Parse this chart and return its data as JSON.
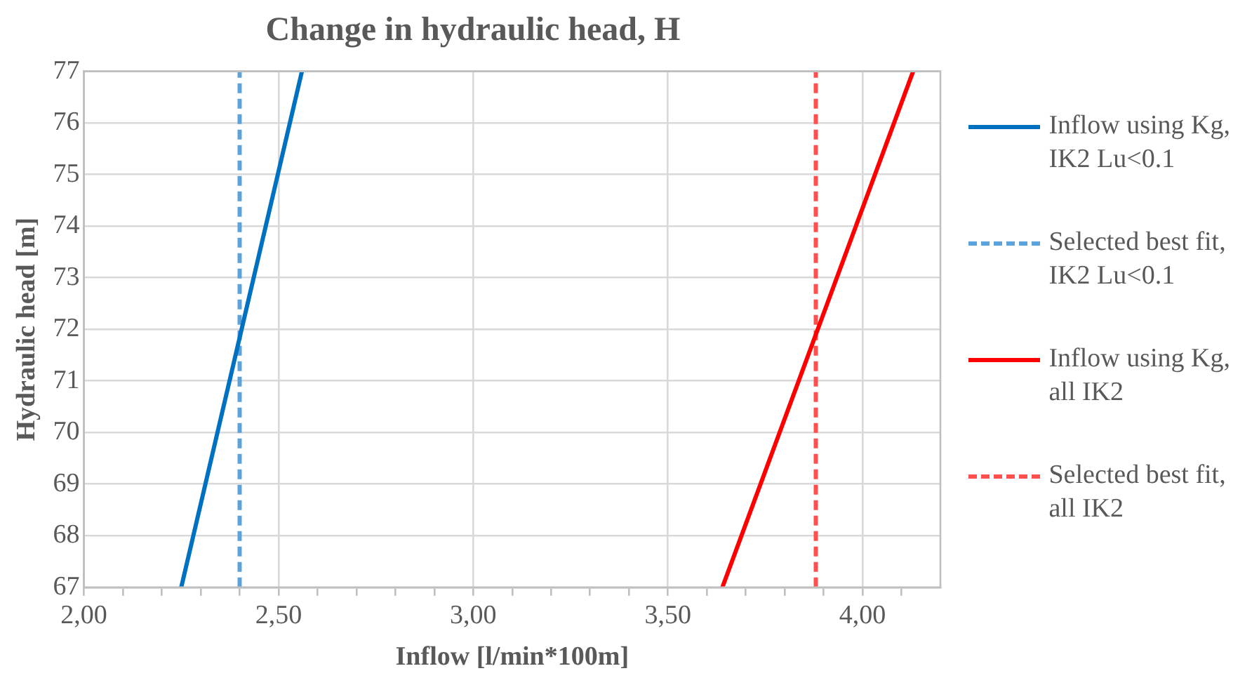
{
  "chart_data": {
    "type": "line",
    "title": "Change in hydraulic head, H",
    "xlabel": "Inflow [l/min*100m]",
    "ylabel": "Hydraulic head [m]",
    "xlim": [
      2,
      4.2
    ],
    "xticks": [
      {
        "value": 2,
        "label": "2,00"
      },
      {
        "value": 2.1,
        "label": null
      },
      {
        "value": 2.2,
        "label": null
      },
      {
        "value": 2.3,
        "label": null
      },
      {
        "value": 2.4,
        "label": null
      },
      {
        "value": 2.5,
        "label": "2,50"
      },
      {
        "value": 2.6,
        "label": null
      },
      {
        "value": 2.7,
        "label": null
      },
      {
        "value": 2.8,
        "label": null
      },
      {
        "value": 2.9,
        "label": null
      },
      {
        "value": 3,
        "label": "3,00"
      },
      {
        "value": 3.1,
        "label": null
      },
      {
        "value": 3.2,
        "label": null
      },
      {
        "value": 3.3,
        "label": null
      },
      {
        "value": 3.4,
        "label": null
      },
      {
        "value": 3.5,
        "label": "3,50"
      },
      {
        "value": 3.6,
        "label": null
      },
      {
        "value": 3.7,
        "label": null
      },
      {
        "value": 3.8,
        "label": null
      },
      {
        "value": 3.9,
        "label": null
      },
      {
        "value": 4,
        "label": "4,00"
      },
      {
        "value": 4.1,
        "label": null
      }
    ],
    "ylim": [
      67,
      77
    ],
    "yticks": [
      67,
      68,
      69,
      70,
      71,
      72,
      73,
      74,
      75,
      76,
      77
    ],
    "grid": true,
    "legend": "right",
    "marker": "none",
    "series": [
      {
        "name": "Inflow using Kg, IK2 Lu<0.1",
        "color": "#0070c0",
        "x": [
          2.25,
          2.56
        ],
        "values": [
          67,
          77
        ],
        "line_style": "solid"
      },
      {
        "name": "Selected best fit, IK2 Lu<0.1",
        "color": "#5ba3dc",
        "x": [
          2.4,
          2.4
        ],
        "values": [
          67,
          77
        ],
        "line_style": "dashed"
      },
      {
        "name": "Inflow using Kg, all IK2",
        "color": "#ff0000",
        "x": [
          3.64,
          4.13
        ],
        "values": [
          67,
          77
        ],
        "line_style": "solid"
      },
      {
        "name": "Selected best fit, all IK2",
        "color": "#ff5050",
        "x": [
          3.88,
          3.88
        ],
        "values": [
          67,
          77
        ],
        "line_style": "dashed"
      }
    ]
  }
}
